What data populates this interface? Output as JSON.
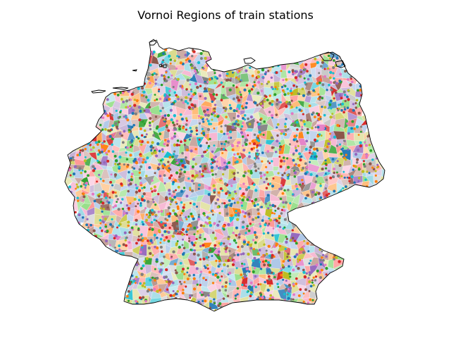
{
  "figure": {
    "title": "Vornoi Regions of train stations"
  },
  "map": {
    "region": "Germany",
    "layer": "voronoi-regions",
    "point_layer": "train-stations",
    "border_color": "#000000",
    "colors": [
      "#1f77b4",
      "#ff7f0e",
      "#2ca02c",
      "#d62728",
      "#9467bd",
      "#8c564b",
      "#e377c2",
      "#7f7f7f",
      "#bcbd22",
      "#17becf"
    ],
    "light_colors": [
      "#aec7e8",
      "#ffbb78",
      "#98df8a",
      "#ff9896",
      "#c5b0d5",
      "#c49c94",
      "#f7b6d2",
      "#c7c7c7",
      "#dbdb8d",
      "#9edae5"
    ]
  }
}
